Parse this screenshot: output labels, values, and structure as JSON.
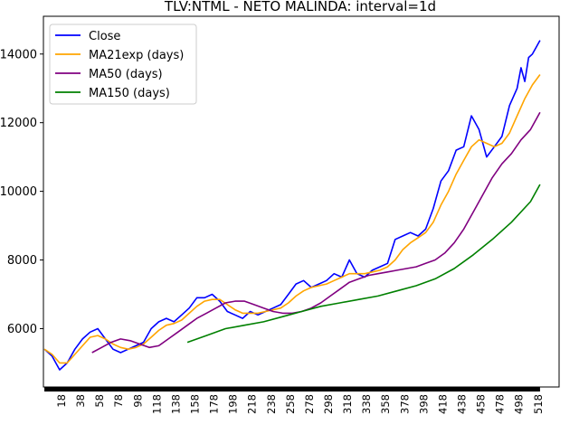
{
  "chart_data": {
    "type": "line",
    "title": "TLV:NTML - NETO MALINDA: interval=1d",
    "xlabel": "",
    "ylabel": "",
    "x_tick_labels": [
      "18",
      "38",
      "58",
      "78",
      "98",
      "118",
      "138",
      "158",
      "178",
      "198",
      "218",
      "238",
      "258",
      "278",
      "298",
      "318",
      "338",
      "358",
      "378",
      "398",
      "418",
      "438",
      "458",
      "478",
      "498",
      "518"
    ],
    "y_tick_labels": [
      "6000",
      "8000",
      "10000",
      "12000",
      "14000"
    ],
    "xlim": [
      -1,
      540
    ],
    "ylim": [
      4300,
      15100
    ],
    "legend_position": "upper left",
    "grid": false,
    "series": [
      {
        "name": "Close",
        "color": "#0000ff",
        "x": [
          0,
          8,
          16,
          24,
          32,
          40,
          48,
          56,
          64,
          72,
          80,
          88,
          96,
          104,
          112,
          120,
          128,
          136,
          144,
          152,
          160,
          168,
          176,
          184,
          192,
          200,
          208,
          216,
          224,
          232,
          240,
          248,
          256,
          264,
          272,
          280,
          288,
          296,
          304,
          312,
          320,
          328,
          336,
          344,
          352,
          360,
          368,
          376,
          384,
          392,
          400,
          408,
          416,
          424,
          432,
          440,
          448,
          456,
          464,
          472,
          480,
          488,
          496,
          500,
          504,
          508,
          512,
          516,
          520
        ],
        "values": [
          5400,
          5200,
          4800,
          5000,
          5400,
          5700,
          5900,
          6000,
          5700,
          5400,
          5300,
          5400,
          5500,
          5600,
          6000,
          6200,
          6300,
          6200,
          6400,
          6600,
          6900,
          6900,
          7000,
          6800,
          6500,
          6400,
          6300,
          6500,
          6400,
          6500,
          6600,
          6700,
          7000,
          7300,
          7400,
          7200,
          7300,
          7400,
          7600,
          7500,
          8000,
          7600,
          7500,
          7700,
          7800,
          7900,
          8600,
          8700,
          8800,
          8700,
          8900,
          9500,
          10300,
          10600,
          11200,
          11300,
          12200,
          11800,
          11000,
          11300,
          11600,
          12500,
          13000,
          13600,
          13200,
          13900,
          14000,
          14200,
          14400
        ]
      },
      {
        "name": "MA21exp (days)",
        "color": "#ffa500",
        "x": [
          0,
          8,
          16,
          24,
          32,
          40,
          48,
          56,
          64,
          72,
          80,
          88,
          96,
          104,
          112,
          120,
          128,
          136,
          144,
          152,
          160,
          168,
          176,
          184,
          192,
          200,
          208,
          216,
          224,
          232,
          240,
          248,
          256,
          264,
          272,
          280,
          288,
          296,
          304,
          312,
          320,
          328,
          336,
          344,
          352,
          360,
          368,
          376,
          384,
          392,
          400,
          408,
          416,
          424,
          432,
          440,
          448,
          456,
          464,
          472,
          480,
          488,
          496,
          504,
          512,
          520
        ],
        "values": [
          5400,
          5250,
          5000,
          5000,
          5250,
          5500,
          5750,
          5800,
          5700,
          5550,
          5450,
          5400,
          5450,
          5550,
          5750,
          5950,
          6100,
          6150,
          6250,
          6450,
          6650,
          6800,
          6850,
          6850,
          6700,
          6550,
          6450,
          6450,
          6450,
          6500,
          6550,
          6600,
          6750,
          6950,
          7100,
          7200,
          7250,
          7300,
          7400,
          7500,
          7600,
          7600,
          7600,
          7650,
          7700,
          7800,
          8000,
          8300,
          8500,
          8650,
          8800,
          9100,
          9600,
          10000,
          10500,
          10900,
          11300,
          11500,
          11400,
          11300,
          11400,
          11700,
          12200,
          12700,
          13100,
          13400
        ]
      },
      {
        "name": "MA50 (days)",
        "color": "#800080",
        "x": [
          50,
          60,
          70,
          80,
          90,
          100,
          110,
          120,
          130,
          140,
          150,
          160,
          170,
          180,
          190,
          200,
          210,
          220,
          230,
          240,
          250,
          260,
          270,
          280,
          290,
          300,
          310,
          320,
          330,
          340,
          350,
          360,
          370,
          380,
          390,
          400,
          410,
          420,
          430,
          440,
          450,
          460,
          470,
          480,
          490,
          500,
          510,
          520
        ],
        "values": [
          5300,
          5450,
          5600,
          5700,
          5650,
          5550,
          5450,
          5500,
          5700,
          5900,
          6100,
          6300,
          6450,
          6600,
          6750,
          6800,
          6800,
          6700,
          6600,
          6500,
          6450,
          6450,
          6500,
          6600,
          6750,
          6950,
          7150,
          7350,
          7450,
          7550,
          7600,
          7650,
          7700,
          7750,
          7800,
          7900,
          8000,
          8200,
          8500,
          8900,
          9400,
          9900,
          10400,
          10800,
          11100,
          11500,
          11800,
          12300
        ]
      },
      {
        "name": "MA150 (days)",
        "color": "#008000",
        "x": [
          150,
          170,
          190,
          210,
          230,
          250,
          270,
          290,
          310,
          330,
          350,
          370,
          390,
          410,
          430,
          450,
          470,
          490,
          510,
          520
        ],
        "values": [
          5600,
          5800,
          6000,
          6100,
          6200,
          6350,
          6500,
          6650,
          6750,
          6850,
          6950,
          7100,
          7250,
          7450,
          7750,
          8150,
          8600,
          9100,
          9700,
          10200
        ]
      }
    ]
  }
}
